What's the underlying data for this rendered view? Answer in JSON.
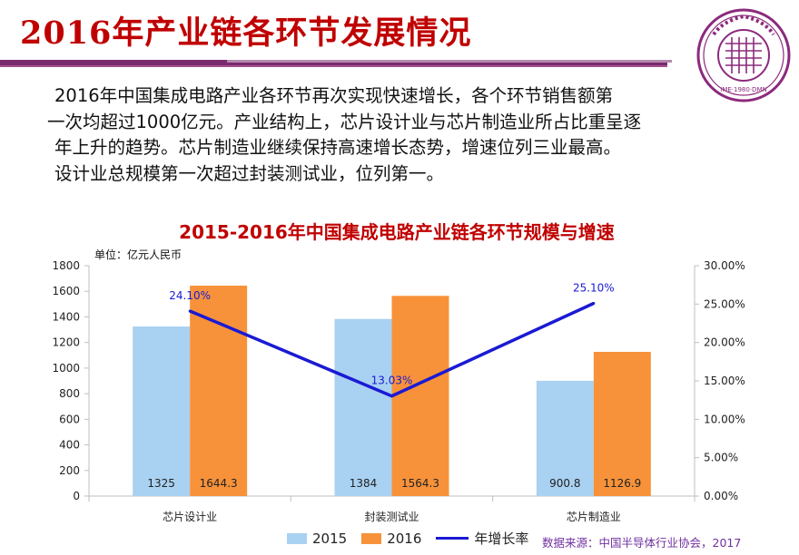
{
  "header": {
    "title": "2016年产业链各环节发展情况",
    "seal_text": "IME·1980·DMN"
  },
  "paragraph": {
    "lines": [
      "2016年中国集成电路产业各环节再次实现快速增长，各个环节销售额第",
      "一次均超过1000亿元。产业结构上，芯片设计业与芯片制造业所占比重呈逐",
      "年上升的趋势。芯片制造业继续保持高速增长态势，增速位列三业最高。",
      "设计业总规模第一次超过封装测试业，位列第一。"
    ]
  },
  "chart_data": {
    "type": "bar",
    "title": "2015-2016年中国集成电路产业链各环节规模与增速",
    "unit_label": "单位：亿元人民币",
    "categories": [
      "芯片设计业",
      "封装测试业",
      "芯片制造业"
    ],
    "series": [
      {
        "name": "2015",
        "type": "bar",
        "values": [
          1325,
          1384,
          900.8
        ],
        "labels": [
          "1325",
          "1384",
          "900.8"
        ],
        "color": "#a9d1f2"
      },
      {
        "name": "2016",
        "type": "bar",
        "values": [
          1644.3,
          1564.3,
          1126.9
        ],
        "labels": [
          "1644.3",
          "1564.3",
          "1126.9"
        ],
        "color": "#f7923a"
      },
      {
        "name": "年增长率",
        "type": "line",
        "axis": "right",
        "values": [
          24.1,
          13.03,
          25.1
        ],
        "labels": [
          "24.10%",
          "13.03%",
          "25.10%"
        ],
        "color": "#1a1ad4"
      }
    ],
    "ylim": [
      0,
      1800
    ],
    "yticks": [
      "0",
      "200",
      "400",
      "600",
      "800",
      "1000",
      "1200",
      "1400",
      "1600",
      "1800"
    ],
    "y2lim": [
      0,
      30
    ],
    "y2ticks": [
      "0.00%",
      "5.00%",
      "10.00%",
      "15.00%",
      "20.00%",
      "25.00%",
      "30.00%"
    ],
    "legend": {
      "position": "bottom",
      "entries": [
        "2015",
        "2016",
        "年增长率"
      ]
    },
    "grid": false
  },
  "footer": {
    "source": "数据来源：中国半导体行业协会，2017"
  },
  "colors": {
    "title": "#c00000",
    "accent_bar": "#7a2a6e",
    "chart_title": "#c00000",
    "source": "#7030a0"
  }
}
